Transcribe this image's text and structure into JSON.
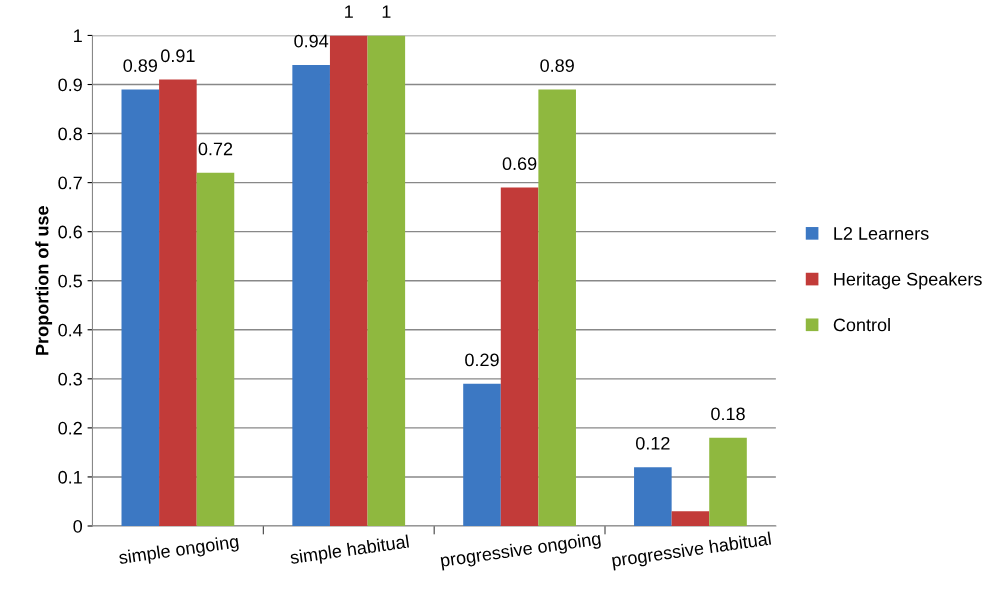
{
  "chart_data": {
    "type": "bar",
    "ylabel": "Proportion of use",
    "categories": [
      "simple ongoing",
      "simple habitual",
      "progressive ongoing",
      "progressive habitual"
    ],
    "series": [
      {
        "name": "L2 Learners",
        "color": "#3c78c3",
        "values": [
          0.89,
          0.94,
          0.29,
          0.12
        ],
        "value_labels": [
          "0.89",
          "0.94",
          "0.29",
          "0.12"
        ]
      },
      {
        "name": "Heritage Speakers",
        "color": "#c23b39",
        "values": [
          0.91,
          1,
          0.69,
          0.03
        ],
        "value_labels": [
          "0.91",
          "1",
          "0.69",
          null
        ]
      },
      {
        "name": "Control",
        "color": "#8fb83f",
        "values": [
          0.72,
          1,
          0.89,
          0.18
        ],
        "value_labels": [
          "0.72",
          "1",
          "0.89",
          "0.18"
        ]
      }
    ],
    "ylim": [
      0,
      1
    ],
    "yticks": [
      0,
      0.1,
      0.2,
      0.3,
      0.4,
      0.5,
      0.6,
      0.7,
      0.8,
      0.9,
      1
    ],
    "grid": "y",
    "legend": "right"
  }
}
